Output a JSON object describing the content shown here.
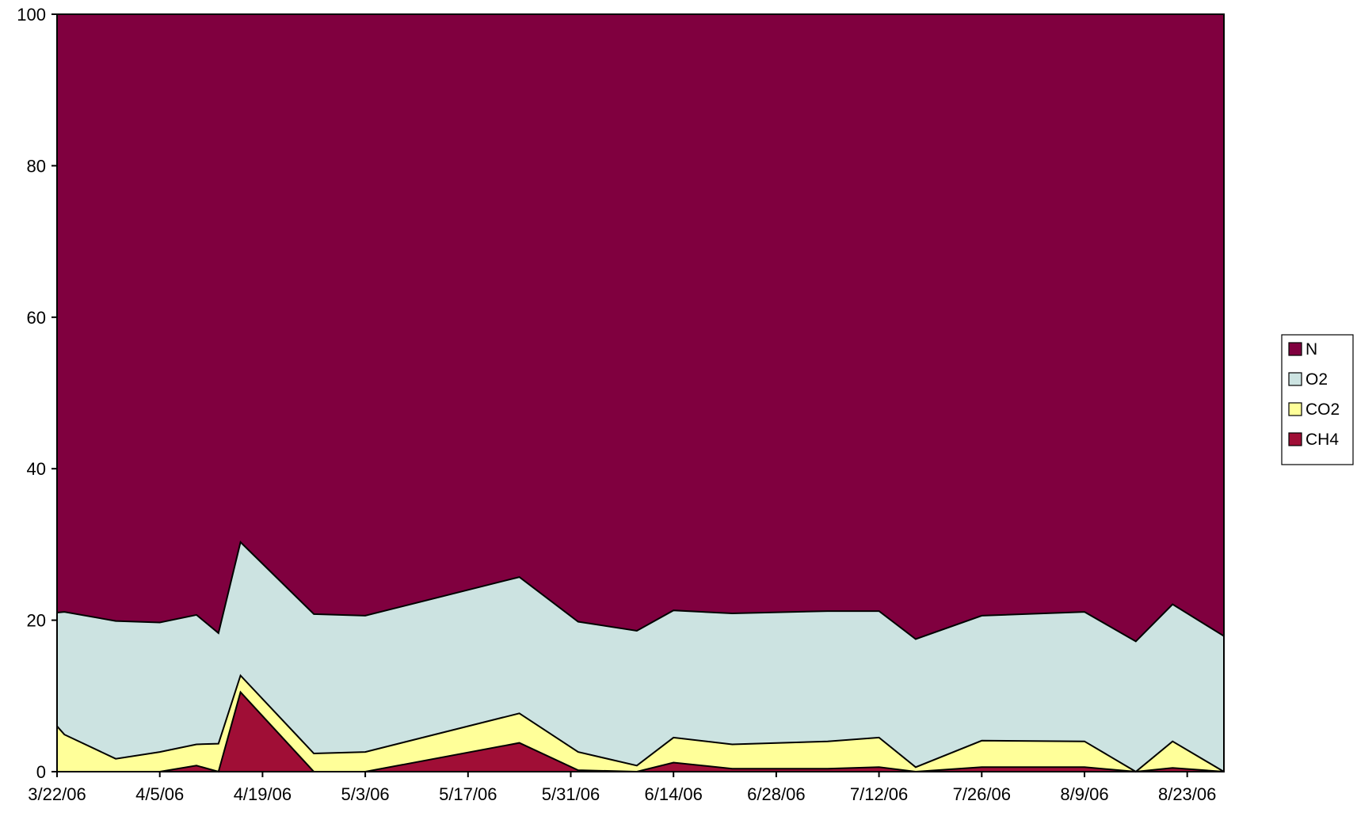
{
  "chart_data": {
    "type": "area",
    "stacked": true,
    "title": "",
    "xlabel": "",
    "ylabel": "",
    "ylim": [
      0,
      100
    ],
    "y_ticks": [
      "0",
      "20",
      "40",
      "60",
      "80",
      "100"
    ],
    "x_tick_labels": [
      "3/22/06",
      "4/5/06",
      "4/19/06",
      "5/3/06",
      "5/17/06",
      "5/31/06",
      "6/14/06",
      "6/28/06",
      "7/12/06",
      "7/26/06",
      "8/9/06",
      "8/23/06"
    ],
    "x": [
      "3/22/06",
      "3/23/06",
      "3/30/06",
      "4/5/06",
      "4/10/06",
      "4/13/06",
      "4/16/06",
      "4/26/06",
      "5/3/06",
      "5/24/06",
      "6/1/06",
      "6/9/06",
      "6/14/06",
      "6/22/06",
      "7/5/06",
      "7/12/06",
      "7/17/06",
      "7/26/06",
      "8/9/06",
      "8/16/06",
      "8/21/06",
      "8/28/06"
    ],
    "series": [
      {
        "name": "CH4",
        "color": "#a00e36",
        "values": [
          0,
          0,
          0,
          0,
          0.8,
          0,
          10.5,
          0,
          0,
          3.8,
          0.2,
          0,
          1.2,
          0.4,
          0.4,
          0.6,
          0,
          0.6,
          0.6,
          0,
          0.5,
          0
        ]
      },
      {
        "name": "CO2",
        "color": "#ffff99",
        "values": [
          6,
          4.9,
          1.7,
          2.6,
          2.8,
          3.7,
          2.2,
          2.4,
          2.6,
          3.9,
          2.4,
          0.8,
          3.3,
          3.2,
          3.6,
          3.9,
          0.6,
          3.5,
          3.4,
          0,
          3.5,
          0
        ]
      },
      {
        "name": "O2",
        "color": "#cce3e1",
        "values": [
          15,
          16.2,
          18.2,
          17.1,
          17.1,
          14.6,
          17.6,
          18.4,
          18.0,
          18.0,
          17.2,
          17.8,
          16.8,
          17.3,
          17.2,
          16.7,
          16.9,
          16.5,
          17.1,
          17.2,
          18.1,
          17.9
        ]
      },
      {
        "name": "N",
        "color": "#80003f",
        "values": [
          79,
          78.9,
          80.1,
          80.3,
          79.3,
          81.7,
          69.7,
          79.2,
          79.4,
          74.3,
          80.2,
          81.4,
          78.7,
          79.1,
          78.8,
          78.8,
          82.5,
          79.4,
          78.9,
          82.8,
          77.9,
          82.1
        ]
      }
    ],
    "legend": {
      "position": "right",
      "order": [
        "N",
        "O2",
        "CO2",
        "CH4"
      ]
    },
    "grid": false
  }
}
